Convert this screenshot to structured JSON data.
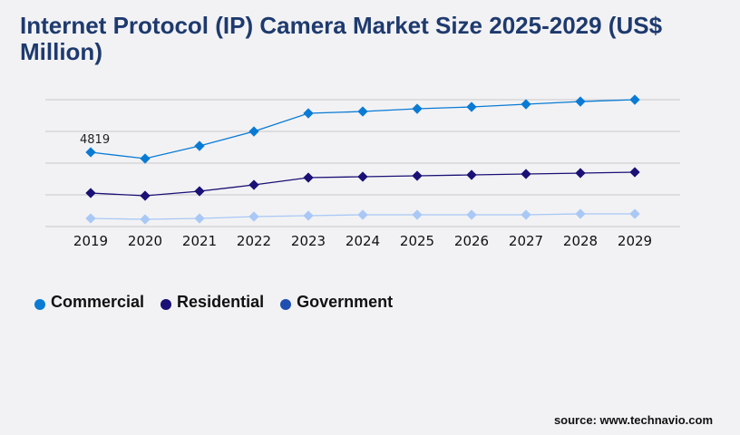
{
  "chart_data": {
    "type": "line",
    "title": "Internet Protocol (IP) Camera Market Size 2025-2029 (US$ Million)",
    "categories": [
      "2019",
      "2020",
      "2021",
      "2022",
      "2023",
      "2024",
      "2025",
      "2026",
      "2027",
      "2028",
      "2029"
    ],
    "ylim": [
      0,
      8230
    ],
    "grid": true,
    "legend_position": "bottom-left",
    "series": [
      {
        "name": "Commercial",
        "color": "#0a7bd4",
        "marker_color": "#0a7bd4",
        "values": [
          4819,
          4408,
          5230,
          6170,
          7346,
          7464,
          7640,
          7758,
          7934,
          8110,
          8228
        ]
      },
      {
        "name": "Residential",
        "color": "#1a1075",
        "marker_color": "#1a1075",
        "values": [
          2174,
          1998,
          2292,
          2703,
          3174,
          3232,
          3291,
          3350,
          3409,
          3467,
          3526
        ]
      },
      {
        "name": "Government",
        "color": "#a9c8f5",
        "marker_color": "#1f4fb0",
        "values": [
          529,
          470,
          529,
          646,
          705,
          764,
          764,
          764,
          764,
          823,
          823
        ]
      }
    ],
    "annotations": [
      {
        "series": "Commercial",
        "category": "2019",
        "label": "4819"
      }
    ]
  },
  "source": "source: www.technavio.com"
}
